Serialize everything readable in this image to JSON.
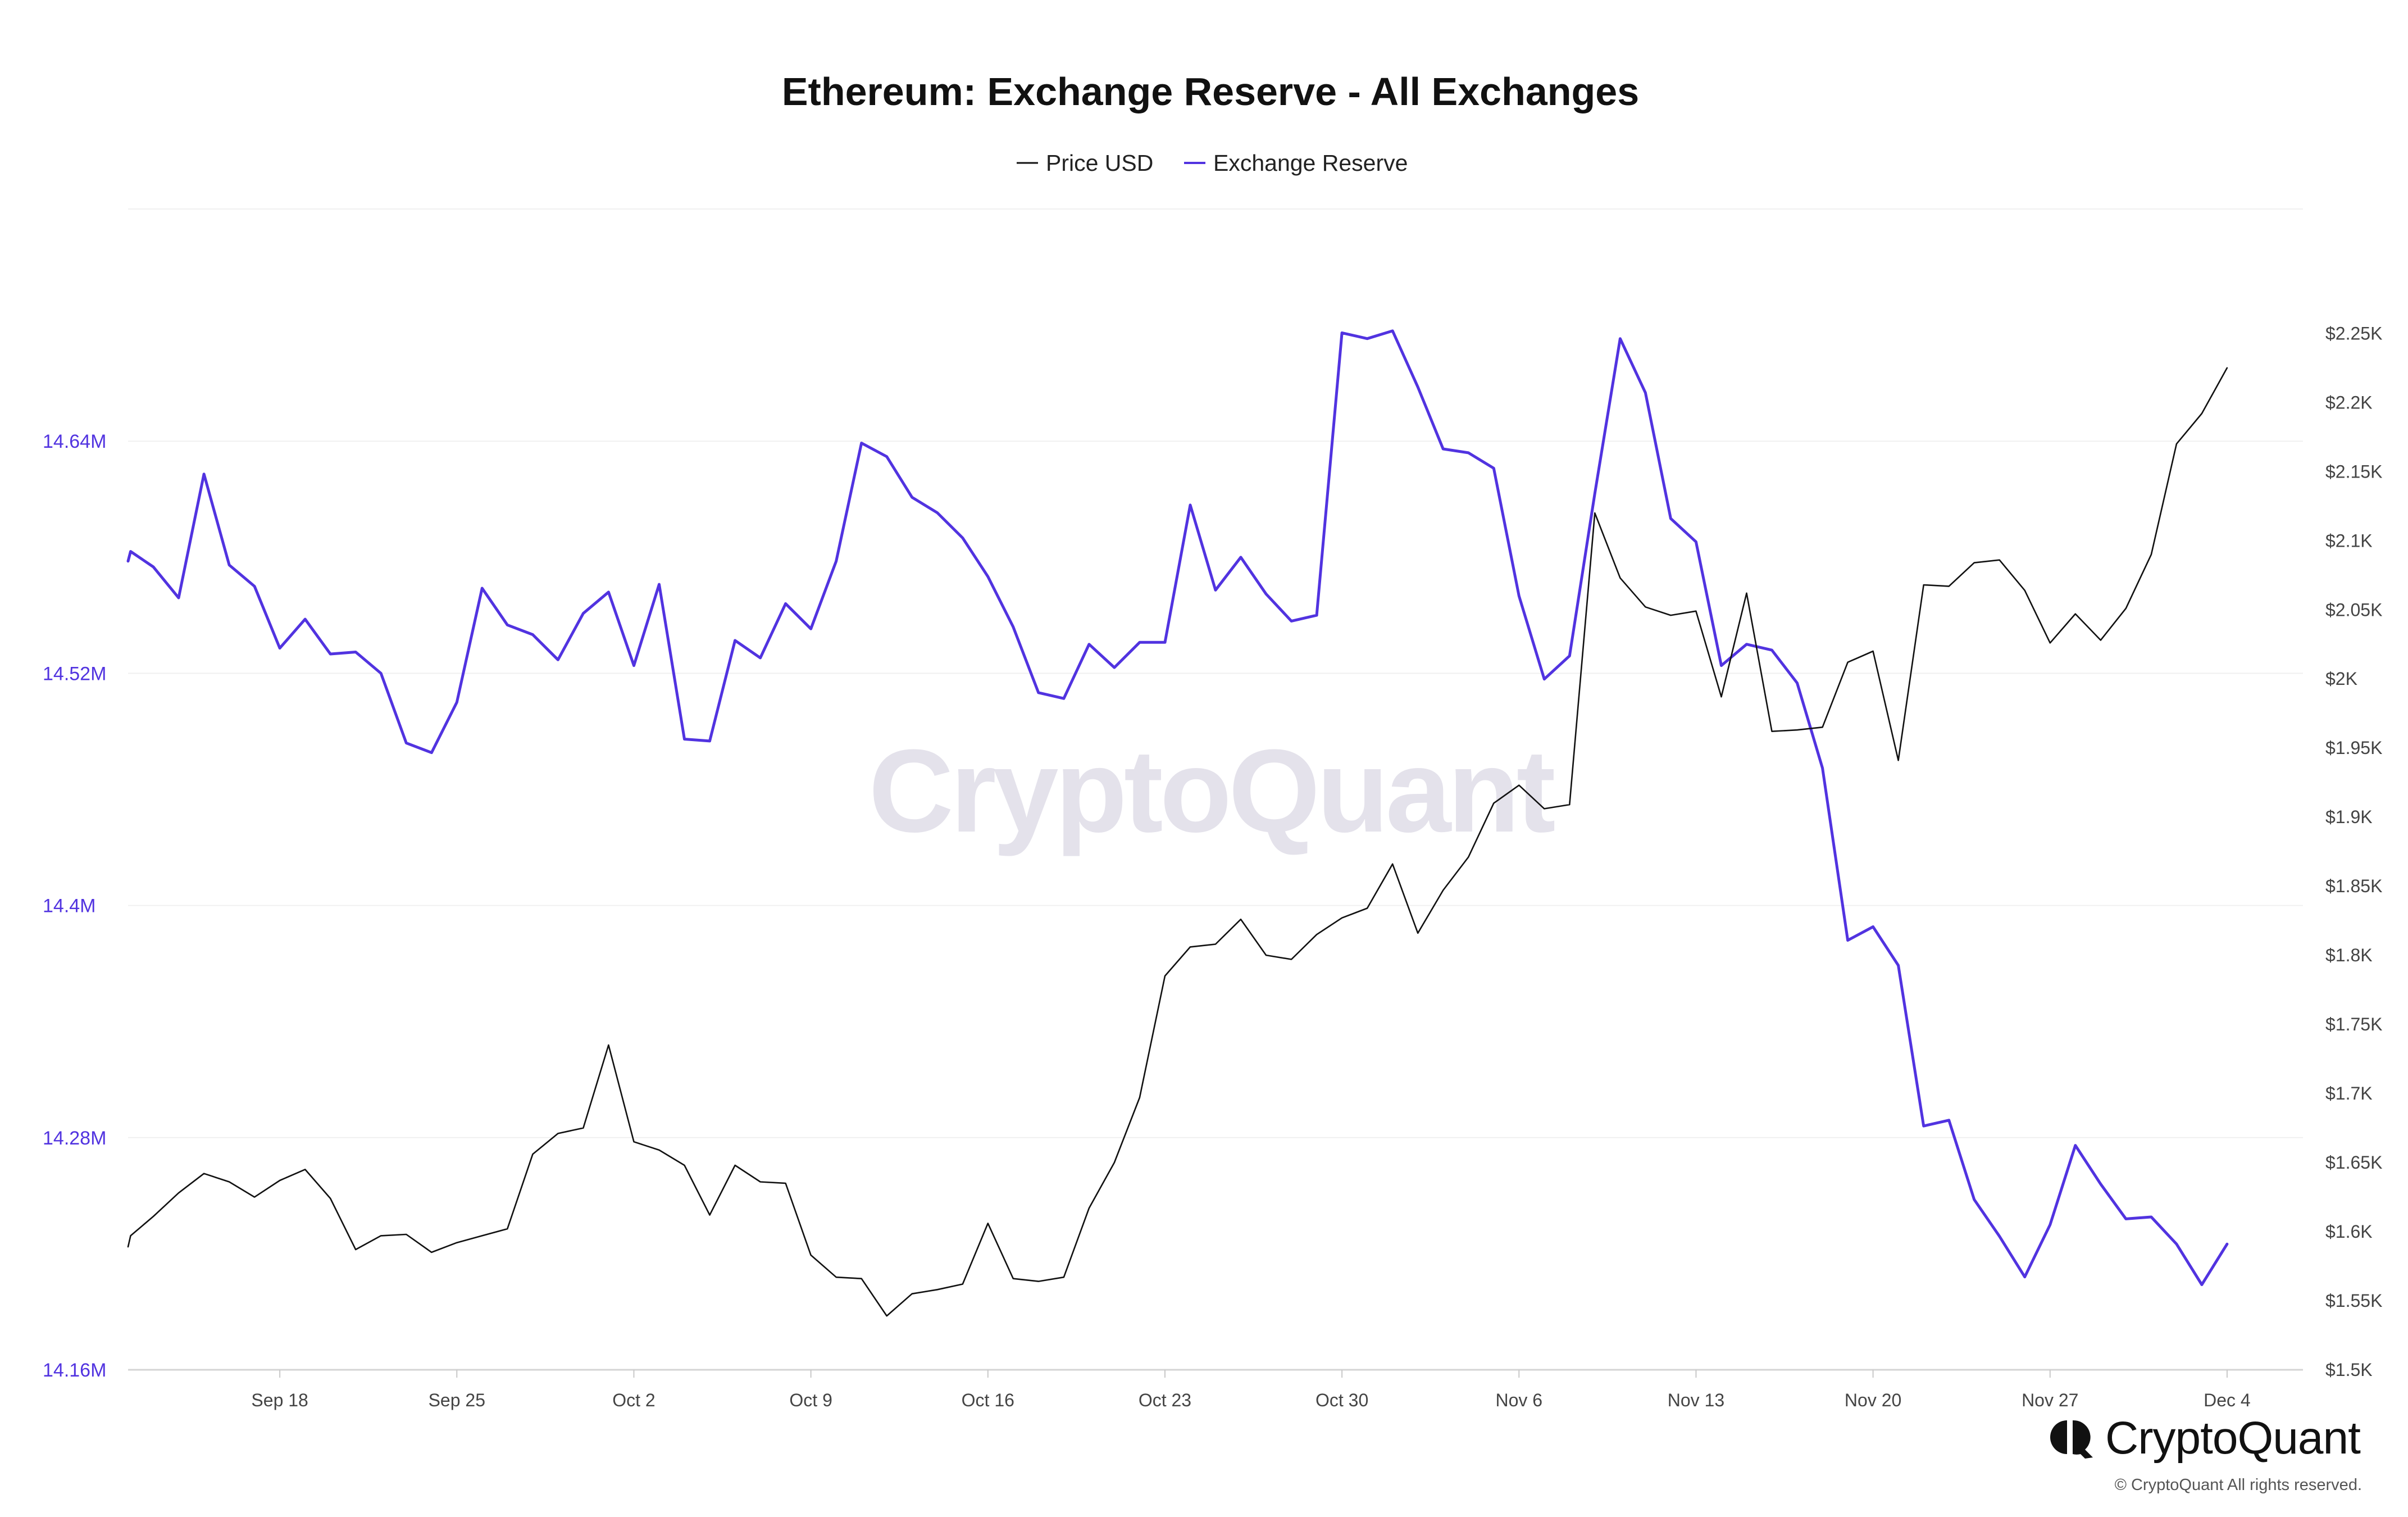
{
  "chart_data": {
    "type": "line",
    "title": "Ethereum: Exchange Reserve - All Exchanges",
    "x_tick_labels": [
      "Sep 18",
      "Sep 25",
      "Oct 2",
      "Oct 9",
      "Oct 16",
      "Oct 23",
      "Oct 30",
      "Nov 6",
      "Nov 13",
      "Nov 20",
      "Nov 27",
      "Dec 4"
    ],
    "x_tick_days": [
      18,
      25,
      32,
      39,
      46,
      53,
      60,
      67,
      74,
      81,
      88,
      95
    ],
    "x_range_days": [
      12,
      98
    ],
    "left_axis": {
      "ticks": [
        14.16,
        14.28,
        14.4,
        14.52,
        14.64
      ],
      "tick_labels": [
        "14.16M",
        "14.28M",
        "14.4M",
        "14.52M",
        "14.64M"
      ],
      "range": [
        14.16,
        14.76
      ],
      "color": "#5133e0"
    },
    "right_axis": {
      "ticks": [
        1.5,
        1.55,
        1.6,
        1.65,
        1.7,
        1.75,
        1.8,
        1.85,
        1.9,
        1.95,
        2.0,
        2.05,
        2.1,
        2.15,
        2.2,
        2.25
      ],
      "tick_labels": [
        "$1.5K",
        "$1.55K",
        "$1.6K",
        "$1.65K",
        "$1.7K",
        "$1.75K",
        "$1.8K",
        "$1.85K",
        "$1.9K",
        "$1.95K",
        "$2K",
        "$2.05K",
        "$2.1K",
        "$2.15K",
        "$2.2K",
        "$2.25K"
      ],
      "range": [
        1.5,
        2.34
      ],
      "color": "#444444"
    },
    "grid": true,
    "legend_position": "top-center",
    "series": [
      {
        "name": "Price USD",
        "axis": "right",
        "color": "#111111",
        "days": [
          12,
          12.1,
          13,
          14,
          15,
          16,
          17,
          18,
          19,
          20,
          21,
          22,
          23,
          24,
          25,
          26,
          27,
          28,
          29,
          30,
          31,
          32,
          33,
          34,
          35,
          36,
          37,
          38,
          39,
          40,
          41,
          42,
          43,
          44,
          45,
          46,
          47,
          48,
          49,
          50,
          51,
          52,
          53,
          54,
          55,
          56,
          57,
          58,
          59,
          60,
          61,
          62,
          63,
          64,
          65,
          66,
          67,
          68,
          69,
          70,
          71,
          72,
          73,
          74,
          75,
          76,
          77,
          78,
          79,
          80,
          81,
          82,
          83,
          84,
          85,
          86,
          87,
          88,
          89,
          90,
          91,
          92,
          93,
          94,
          95
        ],
        "values": [
          1.589,
          1.597,
          1.611,
          1.628,
          1.642,
          1.636,
          1.625,
          1.637,
          1.645,
          1.624,
          1.587,
          1.597,
          1.598,
          1.585,
          1.592,
          1.597,
          1.602,
          1.656,
          1.671,
          1.675,
          1.735,
          1.665,
          1.659,
          1.648,
          1.612,
          1.648,
          1.636,
          1.635,
          1.583,
          1.567,
          1.566,
          1.539,
          1.555,
          1.558,
          1.562,
          1.606,
          1.566,
          1.564,
          1.567,
          1.617,
          1.65,
          1.697,
          1.785,
          1.806,
          1.808,
          1.826,
          1.8,
          1.797,
          1.815,
          1.827,
          1.834,
          1.866,
          1.816,
          1.847,
          1.871,
          1.91,
          1.923,
          1.906,
          1.909,
          2.12,
          2.073,
          2.052,
          2.046,
          2.049,
          1.987,
          2.062,
          1.962,
          1.963,
          1.965,
          2.012,
          2.02,
          1.941,
          2.068,
          2.067,
          2.084,
          2.086,
          2.064,
          2.026,
          2.047,
          2.028,
          2.051,
          2.09,
          2.17,
          2.192,
          2.225
        ]
      },
      {
        "name": "Exchange Reserve",
        "axis": "left",
        "color": "#5133e0",
        "days": [
          12,
          12.1,
          13,
          14,
          15,
          16,
          17,
          18,
          19,
          20,
          21,
          22,
          23,
          24,
          25,
          26,
          27,
          28,
          29,
          30,
          31,
          32,
          33,
          34,
          35,
          36,
          37,
          38,
          39,
          40,
          41,
          42,
          43,
          44,
          45,
          46,
          47,
          48,
          49,
          50,
          51,
          52,
          53,
          54,
          55,
          56,
          57,
          58,
          59,
          60,
          61,
          62,
          63,
          64,
          65,
          66,
          67,
          68,
          69,
          70,
          71,
          72,
          73,
          74,
          75,
          76,
          77,
          78,
          79,
          80,
          81,
          82,
          83,
          84,
          85,
          86,
          87,
          88,
          89,
          90,
          91,
          92,
          93,
          94,
          95
        ],
        "values": [
          14.578,
          14.583,
          14.575,
          14.559,
          14.623,
          14.576,
          14.565,
          14.533,
          14.548,
          14.53,
          14.531,
          14.52,
          14.484,
          14.479,
          14.505,
          14.564,
          14.545,
          14.54,
          14.527,
          14.551,
          14.562,
          14.524,
          14.566,
          14.486,
          14.485,
          14.537,
          14.528,
          14.556,
          14.543,
          14.578,
          14.639,
          14.632,
          14.611,
          14.603,
          14.59,
          14.57,
          14.544,
          14.51,
          14.507,
          14.535,
          14.523,
          14.536,
          14.536,
          14.607,
          14.563,
          14.58,
          14.561,
          14.547,
          14.55,
          14.696,
          14.693,
          14.697,
          14.668,
          14.636,
          14.634,
          14.626,
          14.56,
          14.517,
          14.529,
          14.613,
          14.693,
          14.665,
          14.6,
          14.588,
          14.524,
          14.535,
          14.532,
          14.515,
          14.471,
          14.382,
          14.389,
          14.369,
          14.286,
          14.289,
          14.248,
          14.229,
          14.208,
          14.235,
          14.276,
          14.256,
          14.238,
          14.239,
          14.225,
          14.204,
          14.225
        ]
      }
    ]
  },
  "legend": {
    "items": [
      {
        "label": "Price USD",
        "color": "#111111"
      },
      {
        "label": "Exchange Reserve",
        "color": "#5133e0"
      }
    ]
  },
  "watermark": {
    "text": "CryptoQuant"
  },
  "branding": {
    "logo_text": "CryptoQuant",
    "copyright": "© CryptoQuant All rights reserved."
  }
}
